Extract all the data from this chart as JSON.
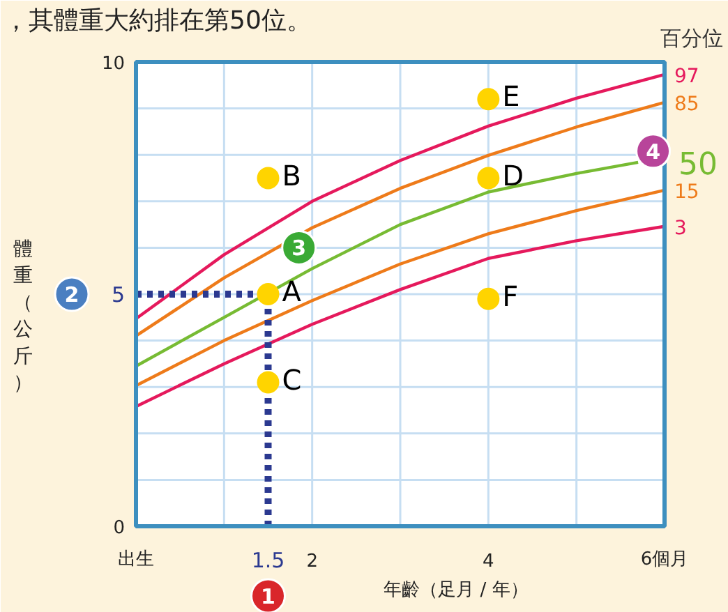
{
  "chart_data": {
    "type": "line",
    "title": "，其體重大約排在第50位。",
    "xlabel": "年齡（足月 / 年）",
    "ylabel": "體重（公斤）",
    "legend_title": "百分位",
    "xlim": [
      0,
      6
    ],
    "ylim": [
      0,
      10
    ],
    "xticks": [
      {
        "value": 0,
        "label": "出生"
      },
      1.5,
      2,
      4,
      {
        "value": 6,
        "label": "6個月"
      }
    ],
    "yticks": [
      0,
      5,
      10
    ],
    "grid": true,
    "series": [
      {
        "name": "97",
        "color": "#e5195c",
        "x": [
          0,
          1,
          2,
          3,
          4,
          5,
          6
        ],
        "values": [
          4.47,
          5.85,
          7.0,
          7.88,
          8.62,
          9.22,
          9.73
        ]
      },
      {
        "name": "85",
        "color": "#ee7b1a",
        "x": [
          0,
          1,
          2,
          3,
          4,
          5,
          6
        ],
        "values": [
          4.1,
          5.35,
          6.43,
          7.28,
          7.99,
          8.6,
          9.13
        ]
      },
      {
        "name": "50",
        "color": "#77bb33",
        "x": [
          0,
          1,
          2,
          3,
          4,
          5,
          5.7
        ],
        "values": [
          3.45,
          4.5,
          5.55,
          6.5,
          7.2,
          7.6,
          7.84
        ]
      },
      {
        "name": "15",
        "color": "#ee7b1a",
        "x": [
          0,
          1,
          2,
          3,
          4,
          5,
          6
        ],
        "values": [
          3.03,
          4.0,
          4.86,
          5.65,
          6.3,
          6.8,
          7.24
        ]
      },
      {
        "name": "3",
        "color": "#e5195c",
        "x": [
          0,
          1,
          2,
          3,
          4,
          5,
          6
        ],
        "values": [
          2.58,
          3.5,
          4.35,
          5.1,
          5.77,
          6.15,
          6.46
        ]
      },
      {
        "type": "line",
        "color": "#2b3990",
        "line_style": "dotted",
        "x": [
          1.5,
          1.5
        ],
        "values": [
          0,
          5
        ]
      },
      {
        "type": "line",
        "color": "#2b3990",
        "line_style": "dotted",
        "x": [
          0,
          1.5
        ],
        "values": [
          5,
          5
        ]
      },
      {
        "type": "scatter",
        "color": "#ffd400",
        "marker": "circle",
        "x": [
          1.5,
          1.5,
          1.5,
          4,
          4,
          4
        ],
        "values": [
          5.0,
          7.5,
          3.1,
          7.5,
          9.2,
          4.9
        ],
        "value_labels": [
          "A",
          "B",
          "C",
          "D",
          "E",
          "F"
        ]
      }
    ],
    "annotations": [
      "1",
      "2",
      {
        "text": "3",
        "x": 1.85,
        "y": 6.0
      },
      {
        "text": "4",
        "x": 5.87,
        "y": 8.08
      }
    ]
  }
}
